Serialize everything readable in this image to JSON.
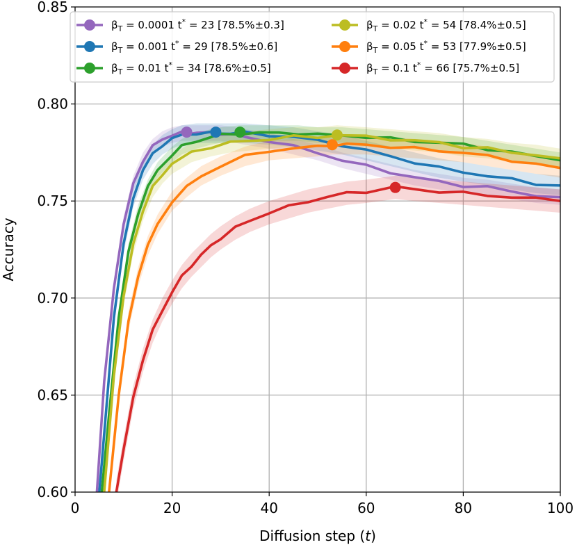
{
  "chart_data": {
    "type": "line",
    "title": "",
    "xlabel": "Diffusion step (t)",
    "xlabel_main": "Diffusion step (",
    "xlabel_var": "t",
    "xlabel_end": ")",
    "ylabel": "Accuracy",
    "xlim": [
      0,
      100
    ],
    "ylim": [
      0.6,
      0.85
    ],
    "xticks": [
      0,
      20,
      40,
      60,
      80,
      100
    ],
    "yticks": [
      0.6,
      0.65,
      0.7,
      0.75,
      0.8,
      0.85
    ],
    "xtick_labels": [
      "0",
      "20",
      "40",
      "60",
      "80",
      "100"
    ],
    "ytick_labels": [
      "0.60",
      "0.65",
      "0.70",
      "0.75",
      "0.80",
      "0.85"
    ],
    "grid": true,
    "legend_position": "top",
    "series": [
      {
        "name": "βT = 0.0001 t* = 23 [78.5%±0.3]",
        "beta": "0.0001",
        "t_star": "23",
        "acc": "[78.5%±0.3]",
        "color": "#9467bd",
        "x": [
          4.5,
          6,
          8,
          10,
          12,
          14,
          16,
          18,
          20,
          22,
          23,
          25,
          28,
          30,
          33,
          35,
          40,
          45,
          50,
          55,
          60,
          65,
          70,
          75,
          80,
          85,
          90,
          95,
          100
        ],
        "y": [
          0.6,
          0.657,
          0.705,
          0.738,
          0.759,
          0.771,
          0.778,
          0.782,
          0.784,
          0.785,
          0.785,
          0.785,
          0.785,
          0.785,
          0.784,
          0.783,
          0.781,
          0.778,
          0.775,
          0.771,
          0.768,
          0.765,
          0.762,
          0.76,
          0.758,
          0.757,
          0.755,
          0.753,
          0.752
        ],
        "optimum": {
          "x": 23,
          "y": 0.7855
        },
        "band": 0.004
      },
      {
        "name": "βT = 0.001 t* = 29 [78.5%±0.6]",
        "beta": "0.001",
        "t_star": "29",
        "acc": "[78.5%±0.6]",
        "color": "#1f77b4",
        "x": [
          5,
          6,
          8,
          10,
          12,
          14,
          16,
          18,
          20,
          22,
          25,
          28,
          29,
          32,
          35,
          40,
          45,
          50,
          55,
          60,
          65,
          70,
          75,
          80,
          85,
          90,
          95,
          100
        ],
        "y": [
          0.6,
          0.63,
          0.69,
          0.728,
          0.752,
          0.766,
          0.774,
          0.779,
          0.782,
          0.784,
          0.785,
          0.785,
          0.785,
          0.785,
          0.785,
          0.784,
          0.783,
          0.781,
          0.779,
          0.776,
          0.773,
          0.77,
          0.767,
          0.765,
          0.763,
          0.761,
          0.759,
          0.758
        ],
        "optimum": {
          "x": 29,
          "y": 0.7855
        },
        "band": 0.005
      },
      {
        "name": "βT = 0.01 t* = 34 [78.6%±0.5]",
        "beta": "0.01",
        "t_star": "34",
        "acc": "[78.6%±0.5]",
        "color": "#2ca02c",
        "x": [
          5.5,
          7,
          9,
          11,
          13,
          15,
          17,
          20,
          22,
          25,
          28,
          30,
          34,
          38,
          42,
          46,
          50,
          55,
          60,
          65,
          70,
          75,
          80,
          85,
          90,
          95,
          100
        ],
        "y": [
          0.6,
          0.64,
          0.69,
          0.724,
          0.744,
          0.757,
          0.766,
          0.774,
          0.778,
          0.781,
          0.783,
          0.784,
          0.785,
          0.785,
          0.785,
          0.785,
          0.784,
          0.784,
          0.783,
          0.782,
          0.781,
          0.78,
          0.779,
          0.777,
          0.775,
          0.773,
          0.771
        ],
        "optimum": {
          "x": 34,
          "y": 0.7855
        },
        "band": 0.004
      },
      {
        "name": "βT = 0.02 t* = 54 [78.4%±0.5]",
        "beta": "0.02",
        "t_star": "54",
        "acc": "[78.4%±0.5]",
        "color": "#bcbd22",
        "x": [
          6,
          8,
          10,
          12,
          14,
          16,
          18,
          20,
          24,
          28,
          32,
          36,
          40,
          45,
          50,
          54,
          60,
          65,
          70,
          75,
          80,
          85,
          90,
          95,
          100
        ],
        "y": [
          0.6,
          0.66,
          0.701,
          0.728,
          0.745,
          0.757,
          0.764,
          0.769,
          0.775,
          0.778,
          0.78,
          0.781,
          0.782,
          0.783,
          0.783,
          0.784,
          0.783,
          0.782,
          0.781,
          0.78,
          0.778,
          0.777,
          0.775,
          0.774,
          0.772
        ],
        "optimum": {
          "x": 54,
          "y": 0.784
        },
        "band": 0.005
      },
      {
        "name": "βT = 0.05 t* = 53 [77.9%±0.5]",
        "beta": "0.05",
        "t_star": "53",
        "acc": "[77.9%±0.5]",
        "color": "#ff7f0e",
        "x": [
          7,
          9,
          11,
          13,
          15,
          17,
          20,
          23,
          26,
          30,
          35,
          40,
          45,
          50,
          53,
          56,
          60,
          65,
          70,
          75,
          80,
          85,
          90,
          95,
          100
        ],
        "y": [
          0.6,
          0.65,
          0.688,
          0.711,
          0.727,
          0.738,
          0.75,
          0.757,
          0.763,
          0.768,
          0.773,
          0.776,
          0.777,
          0.778,
          0.779,
          0.779,
          0.779,
          0.778,
          0.777,
          0.776,
          0.775,
          0.773,
          0.771,
          0.769,
          0.767
        ],
        "optimum": {
          "x": 53,
          "y": 0.779
        },
        "band": 0.005
      },
      {
        "name": "βT = 0.1 t* = 66 [75.7%±0.5]",
        "beta": "0.1",
        "t_star": "66",
        "acc": "[75.7%±0.5]",
        "color": "#d62728",
        "x": [
          8.5,
          10,
          12,
          14,
          16,
          18,
          20,
          22,
          24,
          26,
          28,
          30,
          33,
          36,
          40,
          44,
          48,
          52,
          56,
          60,
          66,
          70,
          75,
          80,
          85,
          90,
          95,
          100
        ],
        "y": [
          0.6,
          0.622,
          0.649,
          0.668,
          0.683,
          0.694,
          0.703,
          0.711,
          0.717,
          0.722,
          0.727,
          0.731,
          0.736,
          0.74,
          0.744,
          0.747,
          0.75,
          0.752,
          0.754,
          0.755,
          0.757,
          0.756,
          0.755,
          0.754,
          0.753,
          0.752,
          0.751,
          0.75
        ],
        "optimum": {
          "x": 66,
          "y": 0.757
        },
        "band": 0.006
      }
    ]
  }
}
